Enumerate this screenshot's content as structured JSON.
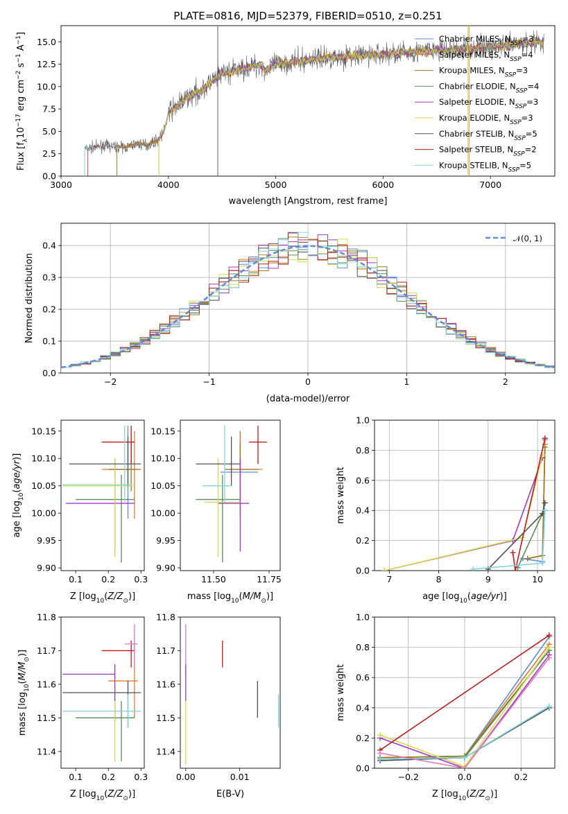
{
  "figure": {
    "title": "PLATE=0816, MJD=52379, FIBERID=0510, z=0.251"
  },
  "colors": {
    "Chabrier MILES": "#5b8cd8",
    "Salpeter MILES": "#e07a2e",
    "Kroupa MILES": "#9c7a20",
    "Chabrier ELODIE": "#5a8a5a",
    "Salpeter ELODIE": "#a335c8",
    "Kroupa ELODIE": "#d4dc4a",
    "Chabrier STELIB": "#505050",
    "Salpeter STELIB": "#b81c1c",
    "Kroupa STELIB": "#7fd6e0",
    "normal": "#5b8cd8",
    "pink": "#e07ab8",
    "olive": "#8a9a30"
  },
  "chart_data": [
    {
      "id": "spectrum",
      "type": "line",
      "xlabel": "wavelength [Angstrom, rest frame]",
      "ylabel": "Flux [f_λ10^-17 erg cm^-2 s^-1 A^-1]",
      "xlim": [
        3000,
        7600
      ],
      "ylim": [
        0,
        16.8
      ],
      "xticks": [
        3000,
        4000,
        5000,
        6000,
        7000
      ],
      "yticks": [
        0.0,
        2.5,
        5.0,
        7.5,
        10.0,
        12.5,
        15.0
      ],
      "legend_position": "top-right",
      "series": [
        {
          "name": "Chabrier MILES, N_SSP=3"
        },
        {
          "name": "Salpeter MILES, N_SSP=4"
        },
        {
          "name": "Kroupa MILES, N_SSP=3"
        },
        {
          "name": "Chabrier ELODIE, N_SSP=4"
        },
        {
          "name": "Salpeter ELODIE, N_SSP=3"
        },
        {
          "name": "Kroupa ELODIE, N_SSP=3"
        },
        {
          "name": "Chabrier STELIB, N_SSP=5"
        },
        {
          "name": "Salpeter STELIB, N_SSP=2"
        },
        {
          "name": "Kroupa STELIB, N_SSP=5"
        }
      ],
      "continuum": {
        "x": [
          3220,
          3400,
          3600,
          3700,
          3800,
          3900,
          3960,
          4000,
          4100,
          4200,
          4300,
          4400,
          4500,
          4700,
          4860,
          4900,
          5000,
          5200,
          5400,
          5600,
          5800,
          6000,
          6200,
          6400,
          6600,
          6800,
          7000,
          7200,
          7400
        ],
        "y": [
          3.0,
          3.4,
          3.2,
          3.6,
          3.5,
          4.0,
          5.0,
          7.0,
          8.0,
          9.0,
          9.5,
          10.5,
          11.5,
          12.0,
          12.5,
          11.8,
          12.5,
          12.8,
          13.2,
          13.3,
          13.5,
          13.6,
          13.8,
          14.0,
          14.0,
          14.2,
          14.5,
          14.6,
          15.0
        ]
      }
    },
    {
      "id": "residuals",
      "type": "line",
      "xlabel": "(data-model)/error",
      "ylabel": "Normed distribution",
      "xlim": [
        -2.5,
        2.5
      ],
      "ylim": [
        0,
        0.47
      ],
      "xticks": [
        -2,
        -1,
        0,
        1,
        2
      ],
      "yticks": [
        0.0,
        0.1,
        0.2,
        0.3,
        0.4
      ],
      "grid": true,
      "legend_position": "top-right",
      "normal_label": "𝒩(0, 1)",
      "hist_bins": 50
    },
    {
      "id": "age-vs-Z",
      "type": "scatter",
      "xlabel": "Z [log10(Z/Z⊙)]",
      "ylabel": "age  [log10(age/yr)]",
      "xlim": [
        0.055,
        0.31
      ],
      "ylim": [
        9.895,
        10.17
      ],
      "xticks": [
        0.1,
        0.2,
        0.3
      ],
      "yticks": [
        9.9,
        9.95,
        10.0,
        10.05,
        10.1,
        10.15
      ],
      "points": [
        {
          "c": "Chabrier MILES",
          "x": 0.26,
          "y": 10.08,
          "xe": [
            0.2,
            0.27
          ],
          "ye": [
            9.99,
            10.16
          ]
        },
        {
          "c": "Salpeter MILES",
          "x": 0.28,
          "y": 10.08,
          "xe": [
            0.18,
            0.29
          ],
          "ye": [
            9.99,
            10.15
          ]
        },
        {
          "c": "Kroupa MILES",
          "x": 0.27,
          "y": 10.08,
          "xe": [
            0.2,
            0.3
          ],
          "ye": [
            10.04,
            10.15
          ]
        },
        {
          "c": "Chabrier ELODIE",
          "x": 0.24,
          "y": 10.025,
          "xe": [
            0.1,
            0.28
          ],
          "ye": [
            9.91,
            10.07
          ]
        },
        {
          "c": "Salpeter ELODIE",
          "x": 0.22,
          "y": 10.018,
          "xe": [
            0.07,
            0.28
          ],
          "ye": [
            9.93,
            10.1
          ]
        },
        {
          "c": "Kroupa ELODIE",
          "x": 0.22,
          "y": 10.05,
          "xe": [
            0.06,
            0.28
          ],
          "ye": [
            9.92,
            10.1
          ]
        },
        {
          "c": "Chabrier STELIB",
          "x": 0.26,
          "y": 10.09,
          "xe": [
            0.08,
            0.3
          ],
          "ye": [
            10.05,
            10.14
          ]
        },
        {
          "c": "Salpeter STELIB",
          "x": 0.27,
          "y": 10.13,
          "xe": [
            0.18,
            0.28
          ],
          "ye": [
            10.09,
            10.16
          ]
        },
        {
          "c": "Kroupa STELIB",
          "x": 0.25,
          "y": 10.052,
          "xe": [
            0.06,
            0.27
          ],
          "ye": [
            10.02,
            10.16
          ]
        }
      ]
    },
    {
      "id": "age-vs-mass",
      "type": "scatter",
      "xlabel": "mass [log10(M/M⊙)]",
      "ylabel": "",
      "xlim": [
        11.35,
        11.8
      ],
      "ylim": [
        9.895,
        10.17
      ],
      "xticks": [
        11.5,
        11.75
      ],
      "xticklabels": [
        "11.50",
        "11.75"
      ],
      "yticks": [
        9.9,
        9.95,
        10.0,
        10.05,
        10.1,
        10.15
      ],
      "points": [
        {
          "c": "Chabrier MILES",
          "x": 11.62,
          "y": 10.075,
          "xe": [
            11.53,
            11.7
          ],
          "ye": [
            9.99,
            10.15
          ]
        },
        {
          "c": "Salpeter MILES",
          "x": 11.62,
          "y": 10.08,
          "xe": [
            11.55,
            11.72
          ],
          "ye": [
            10.0,
            10.15
          ]
        },
        {
          "c": "Kroupa MILES",
          "x": 11.62,
          "y": 10.08,
          "xe": [
            11.55,
            11.7
          ],
          "ye": [
            10.04,
            10.13
          ]
        },
        {
          "c": "Chabrier ELODIE",
          "x": 11.54,
          "y": 10.025,
          "xe": [
            11.42,
            11.62
          ],
          "ye": [
            9.91,
            10.07
          ]
        },
        {
          "c": "Salpeter ELODIE",
          "x": 11.62,
          "y": 10.018,
          "xe": [
            11.52,
            11.66
          ],
          "ye": [
            9.93,
            10.1
          ]
        },
        {
          "c": "Kroupa ELODIE",
          "x": 11.52,
          "y": 10.02,
          "xe": [
            11.46,
            11.62
          ],
          "ye": [
            9.92,
            10.1
          ]
        },
        {
          "c": "Chabrier STELIB",
          "x": 11.58,
          "y": 10.09,
          "xe": [
            11.42,
            11.62
          ],
          "ye": [
            10.05,
            10.14
          ]
        },
        {
          "c": "Salpeter STELIB",
          "x": 11.7,
          "y": 10.13,
          "xe": [
            11.66,
            11.74
          ],
          "ye": [
            10.09,
            10.16
          ]
        },
        {
          "c": "Kroupa STELIB",
          "x": 11.55,
          "y": 10.05,
          "xe": [
            11.45,
            11.58
          ],
          "ye": [
            10.02,
            10.16
          ]
        }
      ]
    },
    {
      "id": "massweight-vs-age",
      "type": "line",
      "xlabel": "age  [log10(age/yr)]",
      "ylabel": "mass weight",
      "xlim": [
        6.7,
        10.35
      ],
      "ylim": [
        0,
        1
      ],
      "xticks": [
        7,
        8,
        9,
        10
      ],
      "yticks": [
        0.0,
        0.2,
        0.4,
        0.6,
        0.8,
        1.0
      ],
      "grid": true,
      "series": [
        {
          "c": "Chabrier MILES",
          "x": [
            9.7,
            10.1,
            10.15
          ],
          "y": [
            0.08,
            0.06,
            0.87
          ]
        },
        {
          "c": "Salpeter MILES",
          "x": [
            9.8,
            10.1,
            10.15
          ],
          "y": [
            0.08,
            0.1,
            0.84
          ]
        },
        {
          "c": "Kroupa MILES",
          "x": [
            9.8,
            10.1,
            10.15
          ],
          "y": [
            0.08,
            0.1,
            0.82
          ]
        },
        {
          "c": "Chabrier ELODIE",
          "x": [
            9.6,
            10.1,
            10.15
          ],
          "y": [
            0.02,
            0.38,
            0.4
          ]
        },
        {
          "c": "Salpeter ELODIE",
          "x": [
            6.9,
            9.5,
            10.1
          ],
          "y": [
            0.0,
            0.2,
            0.75
          ]
        },
        {
          "c": "Kroupa ELODIE",
          "x": [
            6.9,
            9.7,
            10.1
          ],
          "y": [
            0.0,
            0.22,
            0.77
          ]
        },
        {
          "c": "Chabrier STELIB",
          "x": [
            9.0,
            10.1,
            10.15
          ],
          "y": [
            0.01,
            0.38,
            0.45
          ]
        },
        {
          "c": "Salpeter STELIB",
          "x": [
            9.5,
            9.55,
            10.15
          ],
          "y": [
            0.12,
            0.0,
            0.88
          ]
        },
        {
          "c": "Kroupa STELIB",
          "x": [
            8.7,
            10.1,
            10.15
          ],
          "y": [
            0.01,
            0.05,
            0.4
          ]
        }
      ]
    },
    {
      "id": "mass-vs-Z",
      "type": "scatter",
      "xlabel": "Z [log10(Z/Z⊙)]",
      "ylabel": "mass [log10(M/M⊙)]",
      "xlim": [
        0.055,
        0.31
      ],
      "ylim": [
        11.35,
        11.8
      ],
      "xticks": [
        0.1,
        0.2,
        0.3
      ],
      "yticks": [
        11.4,
        11.5,
        11.6,
        11.7,
        11.8
      ],
      "points": [
        {
          "c": "Salpeter MILES",
          "x": 0.28,
          "y": 11.61,
          "xe": [
            0.2,
            0.29
          ],
          "ye": [
            11.5,
            11.73
          ]
        },
        {
          "c": "Chabrier ELODIE",
          "x": 0.24,
          "y": 11.5,
          "xe": [
            0.1,
            0.28
          ],
          "ye": [
            11.37,
            11.55
          ]
        },
        {
          "c": "Salpeter ELODIE",
          "x": 0.22,
          "y": 11.63,
          "xe": [
            0.06,
            0.22
          ],
          "ye": [
            11.49,
            11.66
          ]
        },
        {
          "c": "Kroupa ELODIE",
          "x": 0.22,
          "y": 11.52,
          "xe": [
            0.06,
            0.24
          ],
          "ye": [
            11.37,
            11.55
          ]
        },
        {
          "c": "Chabrier STELIB",
          "x": 0.26,
          "y": 11.575,
          "xe": [
            0.06,
            0.3
          ],
          "ye": [
            11.47,
            11.61
          ]
        },
        {
          "c": "Salpeter STELIB",
          "x": 0.27,
          "y": 11.7,
          "xe": [
            0.18,
            0.28
          ],
          "ye": [
            11.65,
            11.73
          ]
        },
        {
          "c": "Kroupa STELIB",
          "x": 0.26,
          "y": 11.52,
          "xe": [
            0.06,
            0.3
          ],
          "ye": [
            11.47,
            11.57
          ]
        },
        {
          "c": "pink",
          "x": 0.28,
          "y": 11.72,
          "xe": [
            0.25,
            0.29
          ],
          "ye": [
            11.65,
            11.78
          ]
        }
      ]
    },
    {
      "id": "mass-vs-ebv",
      "type": "scatter",
      "xlabel": "E(B-V)",
      "ylabel": "",
      "xlim": [
        -0.001,
        0.0175
      ],
      "ylim": [
        11.35,
        11.8
      ],
      "xticks": [
        0.0,
        0.01
      ],
      "xticklabels": [
        "0.00",
        "0.01"
      ],
      "yticks": [
        11.4,
        11.5,
        11.6,
        11.7,
        11.8
      ],
      "points": [
        {
          "c": "pink",
          "x": 0.0,
          "y": 11.7,
          "ye": [
            11.62,
            11.78
          ]
        },
        {
          "c": "Salpeter ELODIE",
          "x": 0.0,
          "y": 11.6,
          "ye": [
            11.55,
            11.66
          ]
        },
        {
          "c": "Kroupa ELODIE",
          "x": 0.0,
          "y": 11.45,
          "ye": [
            11.36,
            11.55
          ]
        },
        {
          "c": "Salpeter STELIB",
          "x": 0.0068,
          "y": 11.69,
          "ye": [
            11.65,
            11.73
          ]
        },
        {
          "c": "Chabrier STELIB",
          "x": 0.0133,
          "y": 11.56,
          "ye": [
            11.5,
            11.61
          ]
        },
        {
          "c": "Kroupa STELIB",
          "x": 0.0172,
          "y": 11.52,
          "ye": [
            11.47,
            11.57
          ]
        }
      ]
    },
    {
      "id": "massweight-vs-Z",
      "type": "line",
      "xlabel": "Z [log10(Z/Z⊙)]",
      "ylabel": "mass weight",
      "xlim": [
        -0.32,
        0.32
      ],
      "ylim": [
        0,
        1
      ],
      "xticks": [
        -0.2,
        0.0,
        0.2
      ],
      "xticklabels": [
        "−0.2",
        "0.0",
        "0.2"
      ],
      "yticks": [
        0.0,
        0.2,
        0.4,
        0.6,
        0.8,
        1.0
      ],
      "grid": true,
      "series": [
        {
          "c": "Chabrier MILES",
          "x": [
            -0.3,
            0.0,
            0.3
          ],
          "y": [
            0.07,
            0.08,
            0.87
          ]
        },
        {
          "c": "Salpeter MILES",
          "x": [
            -0.3,
            0.0,
            0.3
          ],
          "y": [
            0.07,
            0.08,
            0.82
          ]
        },
        {
          "c": "Kroupa MILES",
          "x": [
            -0.3,
            0.0,
            0.3
          ],
          "y": [
            0.07,
            0.08,
            0.78
          ]
        },
        {
          "c": "Chabrier ELODIE",
          "x": [
            -0.3,
            0.0,
            0.3
          ],
          "y": [
            0.06,
            0.07,
            0.78
          ]
        },
        {
          "c": "Salpeter ELODIE",
          "x": [
            -0.3,
            0.0,
            0.3
          ],
          "y": [
            0.2,
            0.0,
            0.75
          ]
        },
        {
          "c": "Kroupa ELODIE",
          "x": [
            -0.3,
            0.0,
            0.3
          ],
          "y": [
            0.22,
            0.01,
            0.8
          ]
        },
        {
          "c": "Chabrier STELIB",
          "x": [
            -0.3,
            0.0,
            0.3
          ],
          "y": [
            0.05,
            0.07,
            0.4
          ]
        },
        {
          "c": "Salpeter STELIB",
          "x": [
            -0.3,
            0.3
          ],
          "y": [
            0.12,
            0.88
          ]
        },
        {
          "c": "Kroupa STELIB",
          "x": [
            -0.3,
            0.0,
            0.3
          ],
          "y": [
            0.06,
            0.07,
            0.41
          ]
        },
        {
          "c": "pink",
          "x": [
            -0.3,
            0.0,
            0.3
          ],
          "y": [
            0.1,
            0.0,
            0.73
          ]
        }
      ]
    }
  ]
}
